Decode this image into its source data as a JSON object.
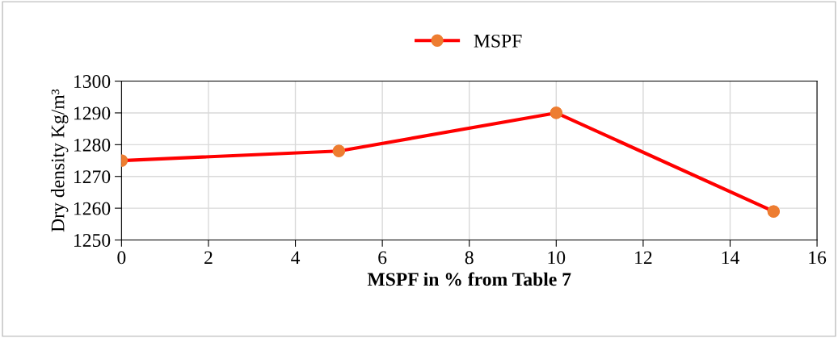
{
  "chart_data": {
    "type": "line",
    "xlabel": "MSPF in % from Table 7",
    "ylabel": "Dry density Kg/m³",
    "x": [
      0,
      5,
      10,
      15
    ],
    "series": [
      {
        "name": "MSPF",
        "color": "#ff0000",
        "colors": [
          "#ed7d31",
          "#ed7d31",
          "#ed7d31",
          "#ed7d31"
        ],
        "values": [
          1275,
          1278,
          1290,
          1259
        ]
      }
    ],
    "xlim": [
      0,
      16
    ],
    "xticks": [
      0,
      2,
      4,
      6,
      8,
      10,
      12,
      14,
      16
    ],
    "ylim": [
      1250,
      1300
    ],
    "yticks": [
      1250,
      1260,
      1270,
      1280,
      1290,
      1300
    ],
    "grid": true,
    "legend": "top",
    "marker": "circle",
    "line_style": "solid"
  }
}
